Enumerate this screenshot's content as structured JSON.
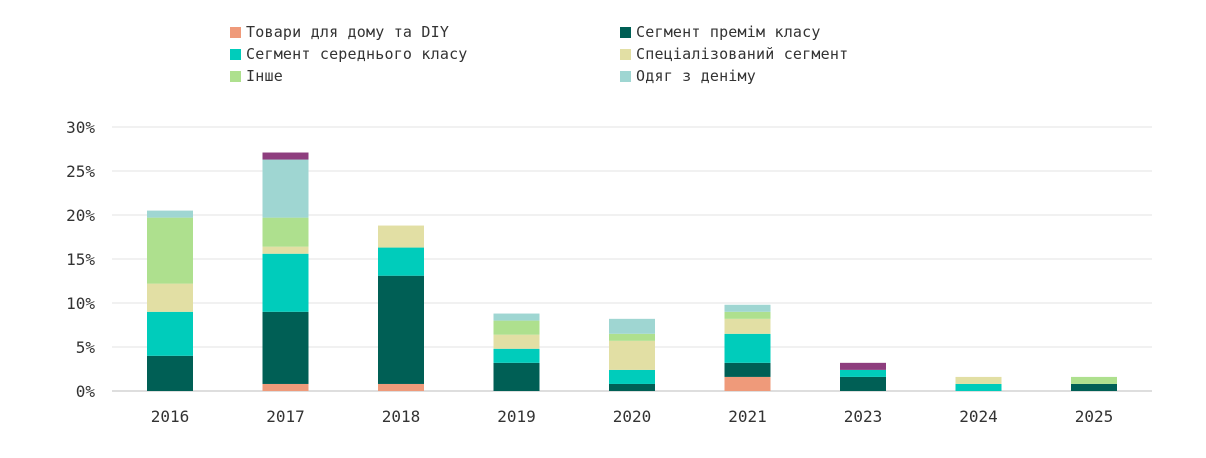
{
  "chart_data": {
    "type": "bar",
    "stacked": true,
    "categories": [
      "2016",
      "2017",
      "2018",
      "2019",
      "2020",
      "2021",
      "2023",
      "2024",
      "2025"
    ],
    "series": [
      {
        "name": "Товари для дому та DIY",
        "color": "#ef9a7a",
        "values": [
          0,
          0.8,
          0.8,
          0,
          0,
          1.6,
          0,
          0,
          0
        ]
      },
      {
        "name": "Сегмент премім класу",
        "color": "#005f55",
        "values": [
          4.0,
          8.2,
          12.3,
          3.2,
          0.8,
          1.6,
          1.6,
          0,
          0.8
        ]
      },
      {
        "name": "Сегмент середнього класу",
        "color": "#00ccbb",
        "values": [
          5.0,
          6.6,
          3.2,
          1.6,
          1.6,
          3.3,
          0.8,
          0.8,
          0
        ]
      },
      {
        "name": "Спеціалізований сегмент",
        "color": "#e2dfa4",
        "values": [
          3.2,
          0.8,
          2.5,
          1.6,
          3.3,
          1.7,
          0,
          0.8,
          0
        ]
      },
      {
        "name": "Інше",
        "color": "#aee08e",
        "values": [
          7.5,
          3.3,
          0,
          1.6,
          0.8,
          0.8,
          0,
          0,
          0.8
        ]
      },
      {
        "name": "Одяг з деніму",
        "color": "#9fd6d2",
        "values": [
          0.8,
          6.6,
          0,
          0.8,
          1.7,
          0.8,
          0,
          0,
          0
        ]
      },
      {
        "name": "",
        "color": "#8e3e7e",
        "values": [
          0,
          0.8,
          0,
          0,
          0,
          0,
          0.8,
          0,
          0
        ]
      }
    ],
    "y_ticks": [
      "0%",
      "5%",
      "10%",
      "15%",
      "20%",
      "25%",
      "30%"
    ],
    "ylim": [
      0,
      30
    ],
    "grid": true,
    "legend_position": "top"
  }
}
